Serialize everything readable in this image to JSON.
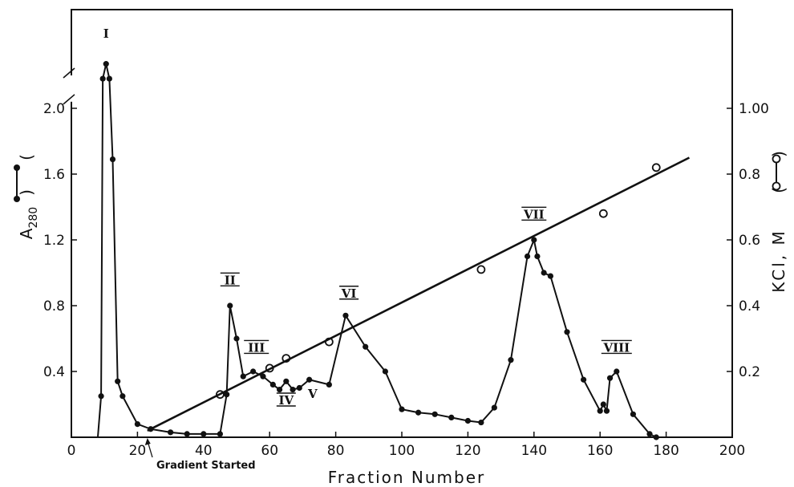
{
  "chart_data": {
    "type": "scatter",
    "xlabel": "Fraction Number",
    "ylabel_left_main": "A",
    "ylabel_left_sub": "280",
    "ylabel_left_paren_open": "(",
    "ylabel_left_paren_close": ")",
    "ylabel_right": "KCl, M",
    "ylabel_right_paren_open": "(",
    "ylabel_right_paren_close": ")",
    "xlim": [
      0,
      200
    ],
    "ylim_left": [
      0,
      2.6
    ],
    "ylim_right": [
      0,
      1.3
    ],
    "left_axis_break_between": [
      2.0,
      2.2
    ],
    "x_ticks": [
      0,
      20,
      40,
      60,
      80,
      100,
      120,
      140,
      160,
      180,
      200
    ],
    "y_ticks_left": [
      {
        "value": 0.4,
        "label": "0.4"
      },
      {
        "value": 0.8,
        "label": "0.8"
      },
      {
        "value": 1.2,
        "label": "1.2"
      },
      {
        "value": 1.6,
        "label": "1.6"
      },
      {
        "value": 2.0,
        "label": "2.0"
      }
    ],
    "y_ticks_right": [
      {
        "value": 0.2,
        "label": "0.2"
      },
      {
        "value": 0.4,
        "label": "0.4"
      },
      {
        "value": 0.6,
        "label": "0.6"
      },
      {
        "value": 0.8,
        "label": "0.8"
      },
      {
        "value": 1.0,
        "label": "1.00"
      }
    ],
    "series": [
      {
        "marker": "filled",
        "axis": "left",
        "connected": true,
        "points": [
          [
            8,
            0
          ],
          [
            9,
            0.25
          ],
          [
            9.5,
            2.18
          ],
          [
            10.5,
            2.27
          ],
          [
            11.5,
            2.18
          ],
          [
            12.5,
            1.69
          ],
          [
            14,
            0.34
          ],
          [
            15.5,
            0.25
          ],
          [
            20,
            0.08
          ],
          [
            24,
            0.05
          ],
          [
            30,
            0.03
          ],
          [
            35,
            0.02
          ],
          [
            40,
            0.02
          ],
          [
            45,
            0.02
          ],
          [
            47,
            0.26
          ],
          [
            48,
            0.8
          ],
          [
            50,
            0.6
          ],
          [
            52,
            0.37
          ],
          [
            55,
            0.4
          ],
          [
            58,
            0.37
          ],
          [
            61,
            0.32
          ],
          [
            63,
            0.29
          ],
          [
            65,
            0.34
          ],
          [
            67,
            0.29
          ],
          [
            69,
            0.3
          ],
          [
            72,
            0.35
          ],
          [
            78,
            0.32
          ],
          [
            83,
            0.74
          ],
          [
            89,
            0.55
          ],
          [
            95,
            0.4
          ],
          [
            100,
            0.17
          ],
          [
            105,
            0.15
          ],
          [
            110,
            0.14
          ],
          [
            115,
            0.12
          ],
          [
            120,
            0.1
          ],
          [
            124,
            0.09
          ],
          [
            128,
            0.18
          ],
          [
            133,
            0.47
          ],
          [
            138,
            1.1
          ],
          [
            140,
            1.2
          ],
          [
            141,
            1.1
          ],
          [
            143,
            1.0
          ],
          [
            145,
            0.98
          ],
          [
            150,
            0.64
          ],
          [
            155,
            0.35
          ],
          [
            160,
            0.16
          ],
          [
            161,
            0.2
          ],
          [
            162,
            0.16
          ],
          [
            163,
            0.36
          ],
          [
            165,
            0.4
          ],
          [
            170,
            0.14
          ],
          [
            175,
            0.02
          ],
          [
            177,
            0.0
          ]
        ]
      },
      {
        "marker": "open",
        "axis": "right",
        "connected": false,
        "points": [
          [
            45,
            0.13
          ],
          [
            60,
            0.21
          ],
          [
            65,
            0.24
          ],
          [
            78,
            0.29
          ],
          [
            124,
            0.51
          ],
          [
            161,
            0.68
          ],
          [
            177,
            0.82
          ]
        ]
      },
      {
        "marker": "none",
        "axis": "right",
        "connected": true,
        "points": [
          [
            23,
            0.02
          ],
          [
            187,
            0.85
          ]
        ]
      }
    ],
    "peak_labels": [
      {
        "text": "I",
        "x": 10.5,
        "y": 2.43,
        "underline": false
      },
      {
        "text": "II",
        "x": 48,
        "y": 0.93,
        "underline": true
      },
      {
        "text": "III",
        "x": 56,
        "y": 0.52,
        "underline": true
      },
      {
        "text": "IV",
        "x": 65,
        "y": 0.2,
        "underline": true
      },
      {
        "text": "V",
        "x": 73,
        "y": 0.24,
        "underline": false
      },
      {
        "text": "VI",
        "x": 84,
        "y": 0.85,
        "underline": true
      },
      {
        "text": "VII",
        "x": 140,
        "y": 1.33,
        "underline": true
      },
      {
        "text": "VIII",
        "x": 165,
        "y": 0.52,
        "underline": true
      }
    ],
    "annotation": {
      "text": "Gradient Started",
      "arrow_to_x": 23
    }
  }
}
